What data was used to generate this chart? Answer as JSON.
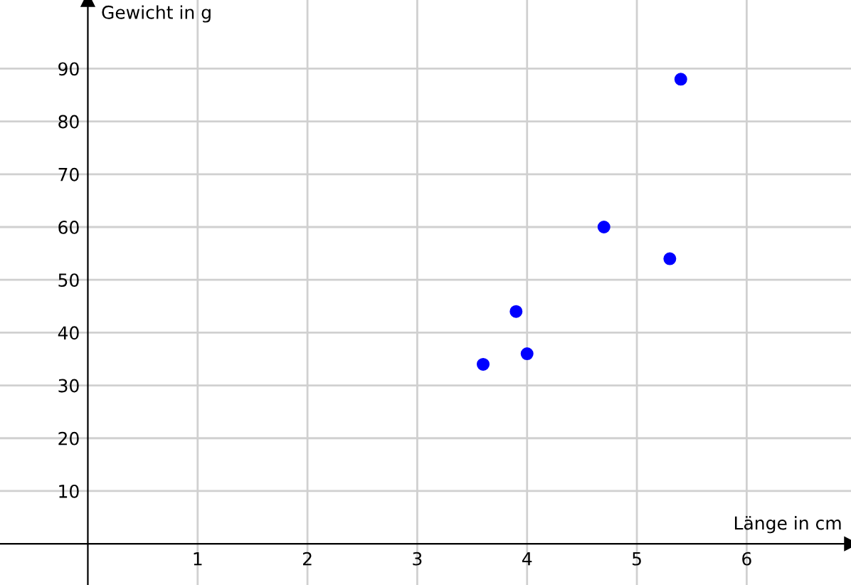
{
  "chart_data": {
    "type": "scatter",
    "xlabel": "Länge in cm",
    "ylabel": "Gewicht in g",
    "x": [
      3.6,
      4.0,
      3.9,
      4.7,
      5.3,
      5.4
    ],
    "values": [
      34,
      36,
      44,
      60,
      54,
      88
    ],
    "color": "#0000ff",
    "marker": "circle",
    "xlim": [
      -0.8,
      6.95
    ],
    "ylim": [
      -7.8,
      103
    ],
    "xticks": [
      1,
      2,
      3,
      4,
      5,
      6
    ],
    "yticks": [
      10,
      20,
      30,
      40,
      50,
      60,
      70,
      80,
      90
    ],
    "grid": true,
    "legend": false
  }
}
